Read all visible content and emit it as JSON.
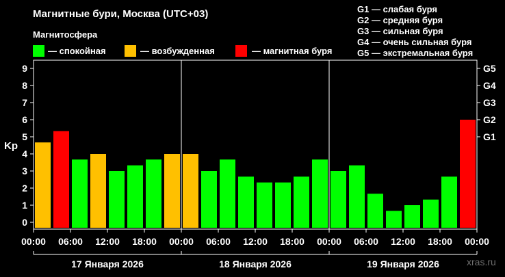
{
  "title": "Магнитные бури, Москва (UTC+03)",
  "legend": {
    "heading": "Магнитосфера",
    "items": [
      {
        "label": "— спокойная",
        "color": "#00ff00"
      },
      {
        "label": "— возбужденная",
        "color": "#ffc000"
      },
      {
        "label": "— магнитная буря",
        "color": "#ff0000"
      }
    ]
  },
  "g_scale_legend": [
    "G1 — слабая буря",
    "G2 — средняя буря",
    "G3 — сильная буря",
    "G4 — очень сильная буря",
    "G5 — экстремальная буря"
  ],
  "watermark": "xras.ru",
  "chart_data": {
    "type": "bar",
    "ylabel": "Kp",
    "ylim": [
      0,
      9
    ],
    "y_ticks": [
      "0",
      "1",
      "2",
      "3",
      "4",
      "5",
      "6",
      "7",
      "8",
      "9"
    ],
    "g_ticks": [
      {
        "label": "G1",
        "kp": 5
      },
      {
        "label": "G2",
        "kp": 6
      },
      {
        "label": "G3",
        "kp": 7
      },
      {
        "label": "G4",
        "kp": 8
      },
      {
        "label": "G5",
        "kp": 9
      }
    ],
    "x_ticks": [
      "00:00",
      "06:00",
      "12:00",
      "18:00",
      "00:00",
      "06:00",
      "12:00",
      "18:00",
      "00:00",
      "06:00",
      "12:00",
      "18:00",
      "00:00"
    ],
    "days": [
      "17 Января 2026",
      "18 Января 2026",
      "19 Января 2026"
    ],
    "values": [
      4.67,
      5.33,
      3.67,
      4.0,
      3.0,
      3.33,
      3.67,
      4.0,
      4.0,
      3.0,
      3.67,
      2.67,
      2.33,
      2.33,
      2.67,
      3.67,
      3.0,
      3.33,
      1.67,
      0.67,
      1.0,
      1.33,
      2.67,
      6.0
    ],
    "colors": [
      "#ffc000",
      "#ff0000",
      "#00ff00",
      "#ffc000",
      "#00ff00",
      "#00ff00",
      "#00ff00",
      "#ffc000",
      "#ffc000",
      "#00ff00",
      "#00ff00",
      "#00ff00",
      "#00ff00",
      "#00ff00",
      "#00ff00",
      "#00ff00",
      "#00ff00",
      "#00ff00",
      "#00ff00",
      "#00ff00",
      "#00ff00",
      "#00ff00",
      "#00ff00",
      "#ff0000"
    ]
  }
}
